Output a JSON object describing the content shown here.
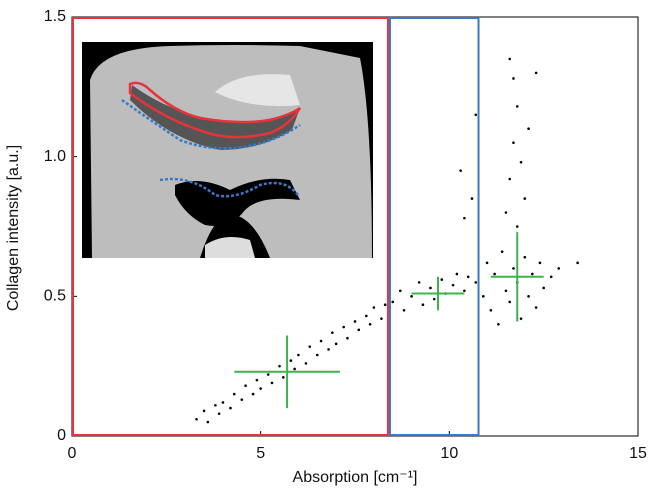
{
  "chart_data": {
    "type": "scatter",
    "xlabel": "Absorption [cm⁻¹]",
    "ylabel": "Collagen intensity [a.u.]",
    "xlim": [
      0,
      15
    ],
    "ylim": [
      0,
      1.5
    ],
    "xticks": [
      0,
      5,
      10,
      15
    ],
    "yticks": [
      0,
      0.5,
      {
        "value": 1,
        "label": "1.0"
      },
      1.5
    ],
    "series": [
      {
        "color": "#000000",
        "x": [
          3.3,
          3.5,
          3.6,
          3.8,
          3.9,
          4.0,
          4.2,
          4.3,
          4.5,
          4.6,
          4.8,
          4.9,
          5.0,
          5.2,
          5.3,
          5.5,
          5.6,
          5.8,
          5.9,
          6.0,
          6.2,
          6.3,
          6.5,
          6.6,
          6.8,
          6.9,
          7.0,
          7.2,
          7.3,
          7.5,
          7.6,
          7.8,
          7.9,
          8.0,
          8.2,
          8.3,
          8.5,
          8.7,
          8.8,
          9.0,
          9.2,
          9.3,
          9.5,
          9.6,
          9.8,
          9.9,
          10.1,
          10.2,
          10.4,
          10.5,
          10.7,
          10.9,
          11.0,
          11.1,
          11.2,
          11.3,
          11.4,
          11.5,
          11.6,
          11.7,
          11.8,
          11.9,
          12.0,
          12.1,
          12.2,
          12.3,
          12.4,
          12.5,
          12.7,
          12.9,
          13.4,
          11.5,
          11.6,
          11.7,
          11.8,
          11.9,
          11.7,
          11.6,
          12.0,
          11.8,
          12.1,
          12.3,
          10.4,
          10.3,
          10.7,
          10.6
        ],
        "y": [
          0.06,
          0.09,
          0.05,
          0.11,
          0.08,
          0.12,
          0.1,
          0.15,
          0.13,
          0.18,
          0.15,
          0.2,
          0.17,
          0.22,
          0.19,
          0.25,
          0.21,
          0.27,
          0.24,
          0.29,
          0.26,
          0.32,
          0.29,
          0.34,
          0.31,
          0.37,
          0.33,
          0.39,
          0.35,
          0.41,
          0.38,
          0.43,
          0.4,
          0.46,
          0.42,
          0.47,
          0.48,
          0.52,
          0.45,
          0.5,
          0.55,
          0.47,
          0.53,
          0.49,
          0.56,
          0.51,
          0.54,
          0.58,
          0.52,
          0.57,
          0.55,
          0.5,
          0.62,
          0.45,
          0.58,
          0.4,
          0.66,
          0.52,
          0.48,
          0.6,
          0.55,
          0.42,
          0.64,
          0.5,
          0.58,
          0.46,
          0.62,
          0.53,
          0.57,
          0.6,
          0.62,
          0.8,
          0.92,
          1.05,
          1.18,
          0.98,
          1.28,
          1.35,
          0.85,
          0.75,
          1.1,
          1.3,
          0.78,
          0.95,
          1.15,
          0.85
        ]
      }
    ],
    "markers": {
      "color": "#3cb44b",
      "x": [
        5.7,
        9.7,
        11.8
      ],
      "y": [
        0.23,
        0.51,
        0.57
      ],
      "xerr": [
        1.4,
        0.7,
        0.7
      ],
      "yerr": [
        0.13,
        0.06,
        0.16
      ]
    },
    "regions": [
      {
        "x0": 0,
        "x1": 8.4,
        "color": "#e8323c"
      },
      {
        "x0": 8.4,
        "x1": 10.8,
        "color": "#3a78c8"
      }
    ]
  }
}
